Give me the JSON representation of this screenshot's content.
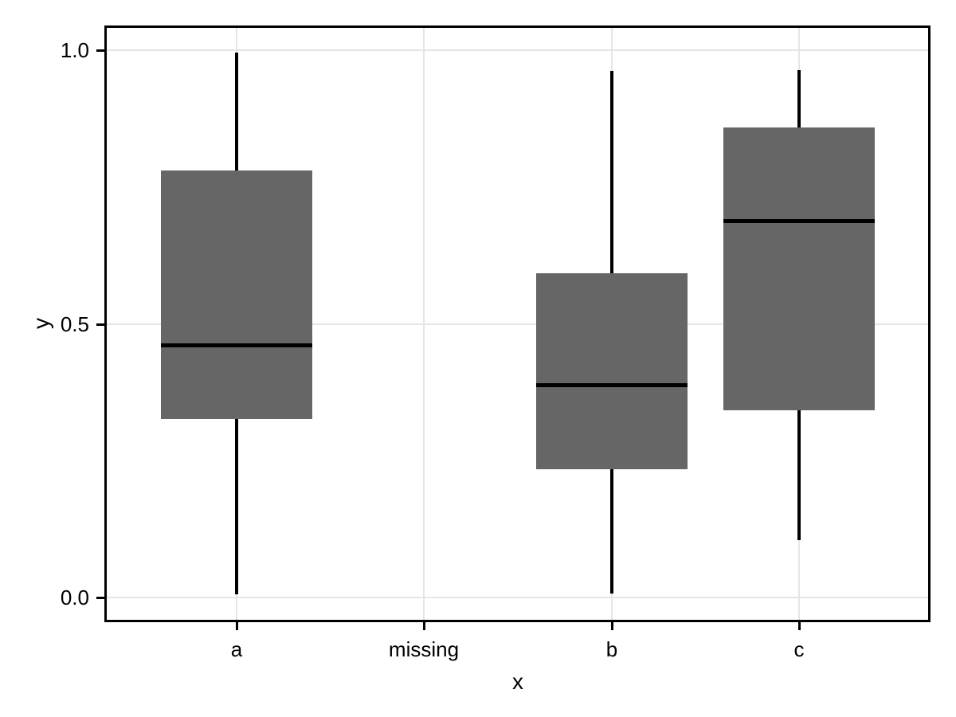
{
  "chart_data": {
    "type": "boxplot",
    "title": "",
    "xlabel": "x",
    "ylabel": "y",
    "categories": [
      "a",
      "missing",
      "b",
      "c"
    ],
    "series": [
      {
        "category": "a",
        "whisker_low": 0.006,
        "q1": 0.326,
        "median": 0.461,
        "q3": 0.78,
        "whisker_high": 0.995
      },
      {
        "category": "missing",
        "whisker_low": null,
        "q1": null,
        "median": null,
        "q3": null,
        "whisker_high": null
      },
      {
        "category": "b",
        "whisker_low": 0.007,
        "q1": 0.234,
        "median": 0.389,
        "q3": 0.592,
        "whisker_high": 0.962
      },
      {
        "category": "c",
        "whisker_low": 0.104,
        "q1": 0.343,
        "median": 0.688,
        "q3": 0.859,
        "whisker_high": 0.963
      }
    ],
    "x_tick_labels": [
      "a",
      "missing",
      "b",
      "c"
    ],
    "y_tick_labels": [
      "0.0",
      "0.5",
      "1.0"
    ],
    "y_tick_values": [
      0.0,
      0.5,
      1.0
    ],
    "ylim": [
      -0.045,
      1.045
    ],
    "grid": "major horizontal at y ticks and vertical at each category",
    "legend": false,
    "outliers": false,
    "whisker_caps": false,
    "colors": {
      "box_fill": "#666666",
      "median_line": "#000000",
      "whisker": "#000000",
      "panel_border": "#000000",
      "tick_mark": "#000000",
      "gridline": "#e5e5e5",
      "text": "#000000",
      "background": "#ffffff"
    }
  }
}
